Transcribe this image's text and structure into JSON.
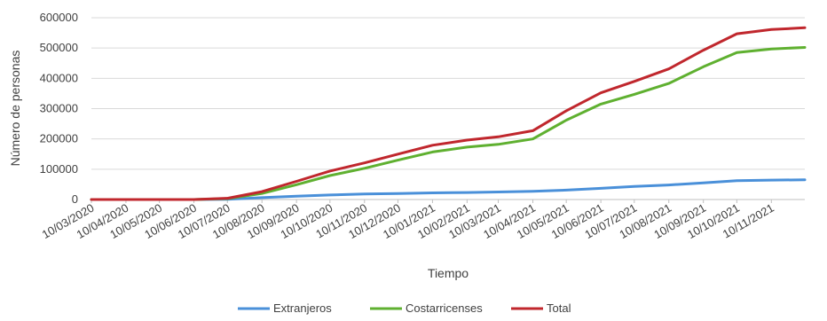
{
  "chart_data": {
    "type": "line",
    "title": "",
    "xlabel": "Tiempo",
    "ylabel": "Número de personas",
    "ylim": [
      0,
      600000
    ],
    "y_ticks": [
      "0",
      "100000",
      "200000",
      "300000",
      "400000",
      "500000",
      "600000"
    ],
    "y_tick_values": [
      0,
      100000,
      200000,
      300000,
      400000,
      500000,
      600000
    ],
    "x_start": "2020-03-10",
    "x_end": "2021-12-10",
    "x_ticks": [
      {
        "label": "10/03/2020",
        "date": "2020-03-10"
      },
      {
        "label": "10/04/2020",
        "date": "2020-04-10"
      },
      {
        "label": "10/05/2020",
        "date": "2020-05-10"
      },
      {
        "label": "10/06/2020",
        "date": "2020-06-10"
      },
      {
        "label": "10/07/2020",
        "date": "2020-07-10"
      },
      {
        "label": "10/08/2020",
        "date": "2020-08-10"
      },
      {
        "label": "10/09/2020",
        "date": "2020-09-10"
      },
      {
        "label": "10/10/2020",
        "date": "2020-10-10"
      },
      {
        "label": "10/11/2020",
        "date": "2020-11-10"
      },
      {
        "label": "10/12/2020",
        "date": "2020-12-10"
      },
      {
        "label": "10/01/2021",
        "date": "2021-01-10"
      },
      {
        "label": "10/02/2021",
        "date": "2021-02-10"
      },
      {
        "label": "10/03/2021",
        "date": "2021-03-10"
      },
      {
        "label": "10/04/2021",
        "date": "2021-04-10"
      },
      {
        "label": "10/05/2021",
        "date": "2021-05-10"
      },
      {
        "label": "10/06/2021",
        "date": "2021-06-10"
      },
      {
        "label": "10/07/2021",
        "date": "2021-07-10"
      },
      {
        "label": "10/08/2021",
        "date": "2021-08-10"
      },
      {
        "label": "10/09/2021",
        "date": "2021-09-10"
      },
      {
        "label": "10/10/2021",
        "date": "2021-10-10"
      },
      {
        "label": "10/11/2021",
        "date": "2021-11-10"
      }
    ],
    "grid": "horizontal",
    "legend_position": "bottom",
    "x": [
      "2020-03-10",
      "2020-04-10",
      "2020-05-10",
      "2020-06-10",
      "2020-07-10",
      "2020-08-10",
      "2020-09-10",
      "2020-10-10",
      "2020-11-10",
      "2020-12-10",
      "2021-01-10",
      "2021-02-10",
      "2021-03-10",
      "2021-04-10",
      "2021-05-10",
      "2021-06-10",
      "2021-07-10",
      "2021-08-10",
      "2021-09-10",
      "2021-10-10",
      "2021-11-10",
      "2021-12-10"
    ],
    "series": [
      {
        "name": "Extranjeros",
        "color": "#4a90d9",
        "values": [
          0,
          0,
          0,
          0,
          1000,
          6000,
          11000,
          15000,
          18000,
          20000,
          22000,
          23000,
          25000,
          27000,
          31000,
          37000,
          43000,
          48000,
          55000,
          62000,
          64000,
          65000
        ]
      },
      {
        "name": "Costarricenses",
        "color": "#5fb030",
        "values": [
          0,
          0,
          0,
          0,
          3000,
          20000,
          49000,
          79000,
          103000,
          130000,
          157000,
          173000,
          182000,
          200000,
          262000,
          315000,
          347000,
          383000,
          438000,
          485000,
          497000,
          502000
        ]
      },
      {
        "name": "Total",
        "color": "#c0272d",
        "values": [
          0,
          0,
          0,
          0,
          4000,
          26000,
          60000,
          94000,
          121000,
          150000,
          179000,
          196000,
          207000,
          227000,
          293000,
          352000,
          390000,
          431000,
          493000,
          547000,
          561000,
          567000
        ]
      }
    ]
  }
}
